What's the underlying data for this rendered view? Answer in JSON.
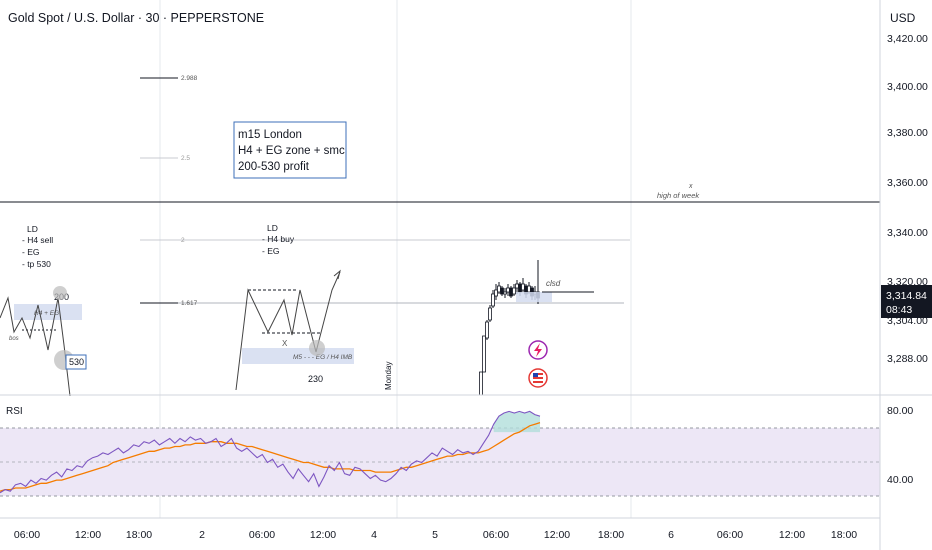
{
  "header": {
    "symbol_title": "Gold Spot / U.S. Dollar · 30 · PEPPERSTONE",
    "currency": "USD"
  },
  "price_axis": {
    "ticks": [
      "3,420.00",
      "3,400.00",
      "3,380.00",
      "3,360.00",
      "3,340.00",
      "3,320.00",
      "3,304.00",
      "3,288.00"
    ],
    "last_price": "3,314.84",
    "countdown": "08:43",
    "colors": {
      "last_price_bg": "#131722",
      "last_price_text": "#ffffff"
    }
  },
  "time_axis": {
    "ticks": [
      "06:00",
      "12:00",
      "18:00",
      "2",
      "06:00",
      "12:00",
      "4",
      "5",
      "06:00",
      "12:00",
      "18:00",
      "6",
      "06:00",
      "12:00",
      "18:00"
    ]
  },
  "annotations": {
    "note_box": [
      "m15 London",
      "H4  + EG zone + smc",
      "200-530 profit"
    ],
    "fib_levels": [
      "2.988",
      "2.5",
      "2",
      "1.617"
    ],
    "high_of_week": "high of week",
    "high_marker": "x",
    "left_plan": [
      "LD",
      "- H4 sell",
      "- EG",
      "- tp 530"
    ],
    "mid_plan": [
      "LD",
      "- H4 buy",
      "- EG"
    ],
    "left_zone_label": "H4 + EG",
    "label_200": "200",
    "label_bos": "bos",
    "label_530": "530",
    "mid_zone_label": "M5 - - - EG / H4 IMB",
    "label_x": "X",
    "label_230": "230",
    "monday": "Monday",
    "clsd": "clsd"
  },
  "indicator": {
    "name": "RSI",
    "ticks": [
      "80.00",
      "40.00"
    ],
    "colors": {
      "rsi": "#7e57c2",
      "ma": "#f57c00",
      "band": "#ede7f6",
      "overbought_fill": "#b2dfdb"
    }
  },
  "chart_data": {
    "type": "line",
    "title": "Gold Spot / U.S. Dollar · 30 · PEPPERSTONE",
    "price_scale": {
      "unit": "USD",
      "ylim": [
        3272,
        3424
      ],
      "last_price": 3314.84,
      "high_of_week": 3361
    },
    "rsi": {
      "ylim": [
        20,
        92
      ],
      "levels": [
        70,
        50,
        30
      ],
      "series": [
        {
          "name": "RSI",
          "values": [
            32,
            34,
            33,
            37,
            38,
            36,
            40,
            38,
            41,
            40,
            43,
            45,
            42,
            47,
            46,
            49,
            48,
            52,
            54,
            55,
            57,
            56,
            58,
            60,
            57,
            59,
            62,
            61,
            64,
            63,
            65,
            62,
            64,
            66,
            63,
            66,
            64,
            67,
            65,
            66,
            63,
            64,
            66,
            61,
            63,
            66,
            60,
            58,
            60,
            57,
            54,
            56,
            51,
            53,
            48,
            50,
            45,
            41,
            47,
            43,
            39,
            44,
            36,
            42,
            49,
            46,
            51,
            44,
            43,
            48,
            47,
            44,
            41,
            43,
            40,
            39,
            41,
            44,
            48,
            46,
            50,
            52,
            51,
            54,
            57,
            55,
            60,
            58,
            56,
            59,
            57,
            58,
            56,
            58,
            63,
            68,
            75,
            80,
            82,
            83,
            82,
            83,
            82,
            83,
            81,
            80
          ]
        },
        {
          "name": "MA",
          "values": [
            33,
            34,
            34,
            35,
            35,
            35,
            36,
            37,
            38,
            38,
            39,
            40,
            40,
            41,
            42,
            43,
            44,
            45,
            46,
            47,
            48,
            49,
            51,
            52,
            53,
            54,
            55,
            56,
            57,
            58,
            58,
            59,
            60,
            60,
            61,
            61,
            62,
            62,
            63,
            63,
            63,
            64,
            64,
            64,
            63,
            63,
            63,
            62,
            61,
            61,
            60,
            59,
            58,
            57,
            56,
            55,
            54,
            53,
            52,
            51,
            51,
            50,
            49,
            48,
            48,
            47,
            47,
            47,
            47,
            46,
            46,
            46,
            46,
            45,
            45,
            45,
            45,
            46,
            47,
            48,
            48,
            49,
            50,
            51,
            52,
            53,
            54,
            55,
            55,
            56,
            56,
            57,
            57,
            57,
            58,
            59,
            61,
            63,
            65,
            67,
            69,
            70,
            72,
            74,
            75,
            76
          ]
        }
      ]
    }
  }
}
